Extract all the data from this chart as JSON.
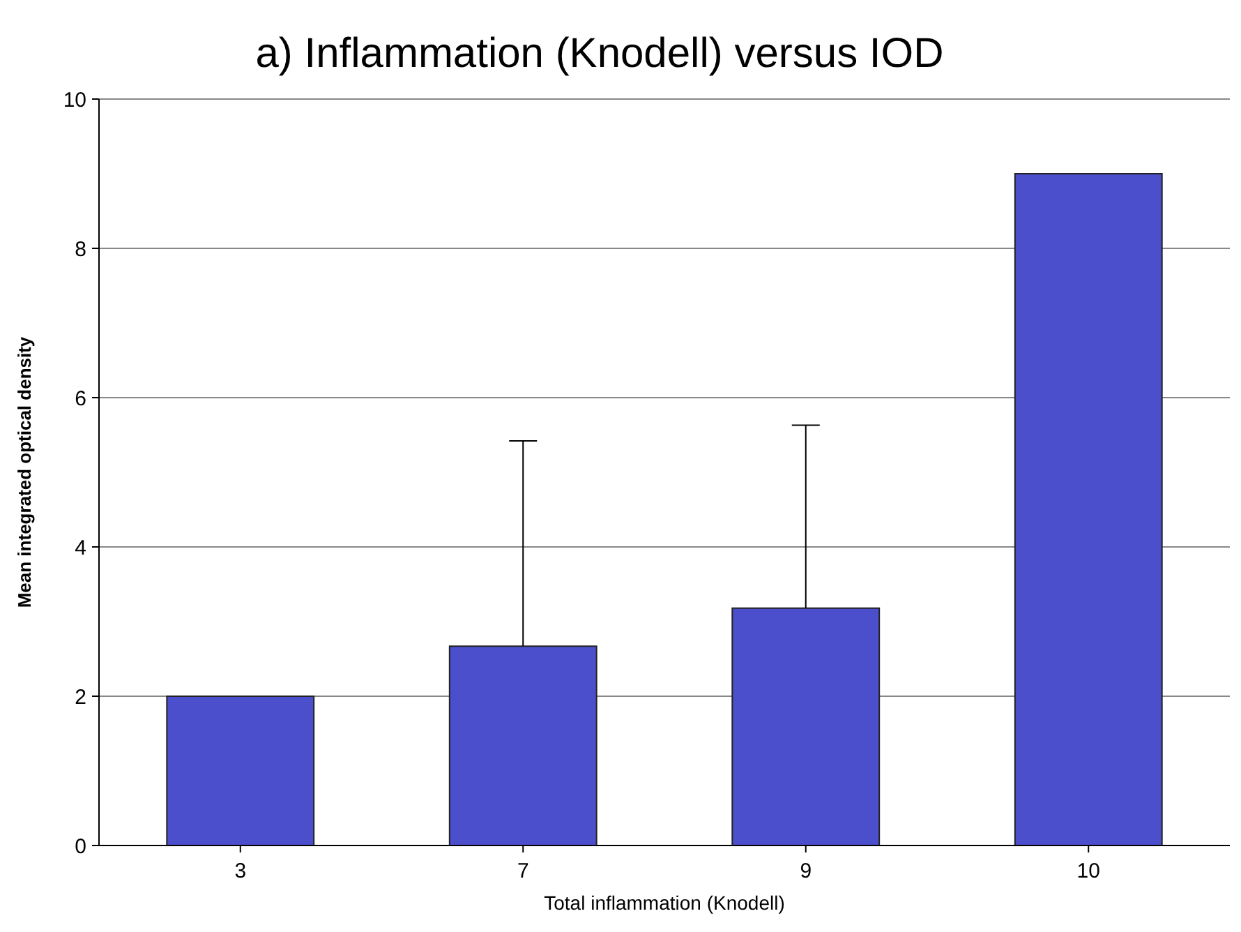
{
  "chart_data": {
    "type": "bar",
    "title": "a) Inflammation (Knodell) versus IOD",
    "xlabel": "Total inflammation (Knodell)",
    "ylabel": "Mean integrated optical density",
    "categories": [
      "3",
      "7",
      "9",
      "10"
    ],
    "series": [
      {
        "color": "#4b4fcb",
        "values": [
          2,
          2.67,
          3.18,
          9
        ],
        "errors": [
          null,
          [
            2.67,
            5.42
          ],
          [
            3.18,
            5.63
          ],
          null
        ]
      }
    ],
    "ylim": [
      0,
      10
    ],
    "yticks": [
      0,
      2,
      4,
      6,
      8,
      10
    ],
    "grid": "y"
  }
}
